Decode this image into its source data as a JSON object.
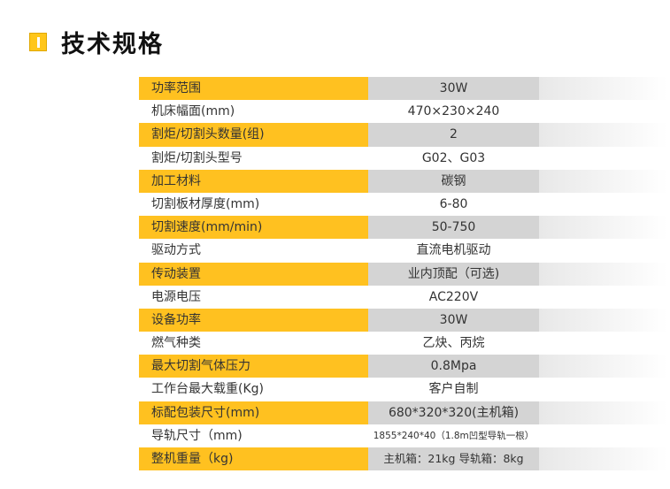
{
  "header": {
    "title": "技术规格",
    "icon": "info-badge-icon",
    "accent_color": "#ffc120"
  },
  "specs": [
    {
      "label": "功率范围",
      "value": "30W"
    },
    {
      "label": "机床幅面(mm)",
      "value": "470×230×240"
    },
    {
      "label": "割炬/切割头数量(组)",
      "value": "2"
    },
    {
      "label": "割炬/切割头型号",
      "value": "G02、G03"
    },
    {
      "label": "加工材料",
      "value": "碳钢"
    },
    {
      "label": "切割板材厚度(mm)",
      "value": "6-80"
    },
    {
      "label": "切割速度(mm/min)",
      "value": "50-750"
    },
    {
      "label": "驱动方式",
      "value": "直流电机驱动"
    },
    {
      "label": "传动装置",
      "value": "业内顶配（可选)"
    },
    {
      "label": "电源电压",
      "value": "AC220V"
    },
    {
      "label": "设备功率",
      "value": "30W"
    },
    {
      "label": "燃气种类",
      "value": "乙炔、丙烷"
    },
    {
      "label": "最大切割气体压力",
      "value": "0.8Mpa"
    },
    {
      "label": "工作台最大载重(Kg)",
      "value": "客户自制"
    },
    {
      "label": "标配包装尺寸(mm)",
      "value": "680*320*320(主机箱)"
    },
    {
      "label": "导轨尺寸（mm)",
      "value": "1855*240*40（1.8m凹型导轨一根）"
    },
    {
      "label": "整机重量（kg)",
      "value": "主机箱：21kg  导轨箱：8kg"
    }
  ]
}
